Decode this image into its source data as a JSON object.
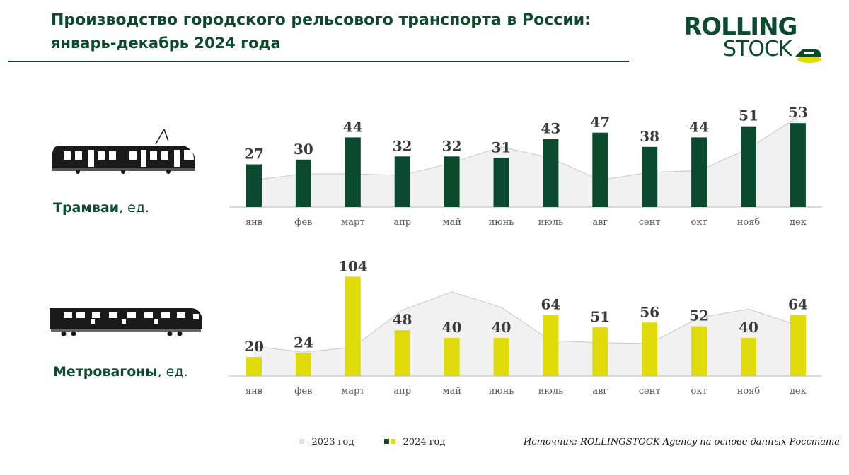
{
  "header": {
    "title": "Производство городского рельсового транспорта в России:",
    "subtitle": "январь-декабрь 2024 года"
  },
  "logo": {
    "line1": "ROLLING",
    "line2": "STOCK"
  },
  "sections": [
    {
      "label_bold": "Трамваи",
      "label_rest": ", ед."
    },
    {
      "label_bold": "Метровагоны",
      "label_rest": ", ед."
    }
  ],
  "legend": {
    "label_2023": "- 2023 год",
    "label_2024": "- 2024 год"
  },
  "source": "Источник: ROLLINGSTOCK Agency на основе данных Росстата",
  "colors": {
    "brand": "#0b4a2c",
    "tram_2024": "#0b4a2c",
    "metro_2024": "#e0dc0c",
    "area_2023_fill": "#f1f1f1",
    "area_2023_line": "#c8c8c8"
  },
  "chart_data": [
    {
      "type": "bar",
      "name": "Трамваи, ед.",
      "categories": [
        "янв",
        "фев",
        "март",
        "апр",
        "май",
        "июнь",
        "июль",
        "авг",
        "сент",
        "окт",
        "нояб",
        "дек"
      ],
      "series": [
        {
          "name": "2024 год",
          "kind": "bar",
          "values": [
            27,
            30,
            44,
            32,
            32,
            31,
            43,
            47,
            38,
            44,
            51,
            53
          ]
        },
        {
          "name": "2023 год",
          "kind": "area",
          "values": [
            17,
            21,
            21,
            20,
            28,
            38,
            31,
            17,
            22,
            23,
            37,
            57
          ]
        }
      ],
      "ylim": [
        0,
        58
      ]
    },
    {
      "type": "bar",
      "name": "Метровагоны, ед.",
      "categories": [
        "янв",
        "фев",
        "март",
        "апр",
        "май",
        "июнь",
        "июль",
        "авг",
        "сент",
        "окт",
        "нояб",
        "дек"
      ],
      "series": [
        {
          "name": "2024 год",
          "kind": "bar",
          "values": [
            20,
            24,
            104,
            48,
            40,
            40,
            64,
            51,
            56,
            52,
            40,
            64
          ]
        },
        {
          "name": "2023 год",
          "kind": "area",
          "values": [
            31,
            25,
            30,
            69,
            88,
            72,
            37,
            35,
            34,
            61,
            70,
            53
          ]
        }
      ],
      "ylim": [
        0,
        108
      ]
    }
  ]
}
